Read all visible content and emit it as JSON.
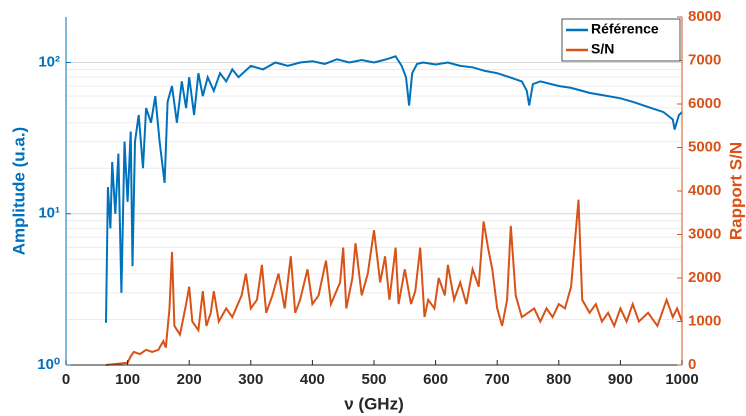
{
  "chart_data": {
    "type": "line",
    "xlabel": "ν (GHz)",
    "ylabel": "Amplitude (u.a.)",
    "y2label": "Rapport S/N",
    "xlim": [
      0,
      1000
    ],
    "xticks": [
      0,
      100,
      200,
      300,
      400,
      500,
      600,
      700,
      800,
      900,
      1000
    ],
    "ylim": [
      1,
      200
    ],
    "yscale": "log",
    "yticks": [
      {
        "value": 1,
        "label": "10⁰"
      },
      {
        "value": 10,
        "label": "10¹"
      },
      {
        "value": 100,
        "label": "10²"
      }
    ],
    "yminorticks": [
      2,
      3,
      4,
      5,
      6,
      7,
      8,
      9,
      20,
      30,
      40,
      50,
      60,
      70,
      80,
      90
    ],
    "y2lim": [
      0,
      8000
    ],
    "y2ticks": [
      0,
      1000,
      2000,
      3000,
      4000,
      5000,
      6000,
      7000,
      8000
    ],
    "grid": true,
    "legend": "upper right",
    "ycolor": "#0072BD",
    "y2color": "#D95319",
    "series": [
      {
        "name": "Référence",
        "color": "#0072BD",
        "x": [
          65,
          68,
          72,
          75,
          80,
          85,
          90,
          95,
          100,
          105,
          108,
          112,
          118,
          125,
          130,
          138,
          145,
          152,
          160,
          165,
          172,
          180,
          188,
          195,
          200,
          208,
          215,
          222,
          230,
          240,
          250,
          260,
          270,
          280,
          300,
          320,
          340,
          360,
          380,
          400,
          420,
          440,
          460,
          480,
          500,
          520,
          535,
          545,
          552,
          557,
          562,
          570,
          580,
          600,
          620,
          640,
          660,
          680,
          700,
          720,
          740,
          748,
          752,
          758,
          770,
          800,
          820,
          850,
          880,
          900,
          920,
          950,
          970,
          985,
          988,
          995,
          1000
        ],
        "values": [
          1.9,
          15,
          8,
          22,
          10,
          25,
          3,
          30,
          12,
          35,
          4.5,
          30,
          45,
          20,
          50,
          40,
          60,
          30,
          16,
          55,
          70,
          40,
          75,
          50,
          80,
          45,
          85,
          60,
          80,
          65,
          85,
          75,
          90,
          80,
          95,
          90,
          100,
          95,
          100,
          102,
          98,
          105,
          100,
          104,
          100,
          105,
          110,
          95,
          80,
          52,
          85,
          98,
          100,
          97,
          100,
          95,
          93,
          88,
          85,
          80,
          75,
          65,
          52,
          72,
          75,
          70,
          68,
          63,
          60,
          58,
          55,
          50,
          47,
          42,
          36,
          45,
          47
        ]
      },
      {
        "name": "S/N",
        "color": "#D95319",
        "axis": "y2",
        "x": [
          65,
          100,
          105,
          110,
          120,
          130,
          140,
          150,
          158,
          162,
          168,
          172,
          176,
          185,
          195,
          200,
          205,
          215,
          222,
          228,
          235,
          240,
          248,
          260,
          270,
          285,
          292,
          300,
          310,
          318,
          325,
          335,
          345,
          355,
          365,
          372,
          380,
          392,
          400,
          410,
          422,
          430,
          445,
          450,
          455,
          465,
          470,
          480,
          490,
          500,
          510,
          518,
          525,
          535,
          540,
          550,
          560,
          567,
          575,
          582,
          588,
          598,
          605,
          615,
          620,
          630,
          640,
          650,
          660,
          670,
          678,
          685,
          692,
          700,
          708,
          716,
          722,
          730,
          740,
          750,
          760,
          770,
          780,
          790,
          800,
          810,
          820,
          826,
          832,
          838,
          850,
          860,
          870,
          880,
          890,
          900,
          910,
          920,
          930,
          945,
          960,
          975,
          985,
          992,
          1000
        ],
        "values": [
          0,
          50,
          200,
          300,
          250,
          350,
          300,
          350,
          550,
          400,
          1300,
          2600,
          900,
          700,
          1400,
          1800,
          1000,
          800,
          1700,
          900,
          1200,
          1700,
          1000,
          1300,
          1100,
          1600,
          2100,
          1300,
          1500,
          2300,
          1200,
          1600,
          2100,
          1300,
          2500,
          1200,
          1500,
          2200,
          1400,
          1600,
          2400,
          1400,
          1900,
          2700,
          1300,
          2000,
          2800,
          1600,
          2100,
          3100,
          1900,
          2500,
          1500,
          2700,
          1400,
          2200,
          1400,
          1700,
          2700,
          1100,
          1500,
          1300,
          2000,
          1600,
          2300,
          1500,
          1900,
          1400,
          2200,
          1800,
          3300,
          2700,
          2200,
          1300,
          900,
          1500,
          3200,
          1600,
          1100,
          1200,
          1300,
          1000,
          1300,
          1100,
          1400,
          1300,
          1800,
          2800,
          3800,
          1500,
          1200,
          1400,
          1000,
          1200,
          900,
          1300,
          1000,
          1400,
          1000,
          1200,
          900,
          1500,
          1100,
          1300,
          1000
        ]
      }
    ]
  }
}
